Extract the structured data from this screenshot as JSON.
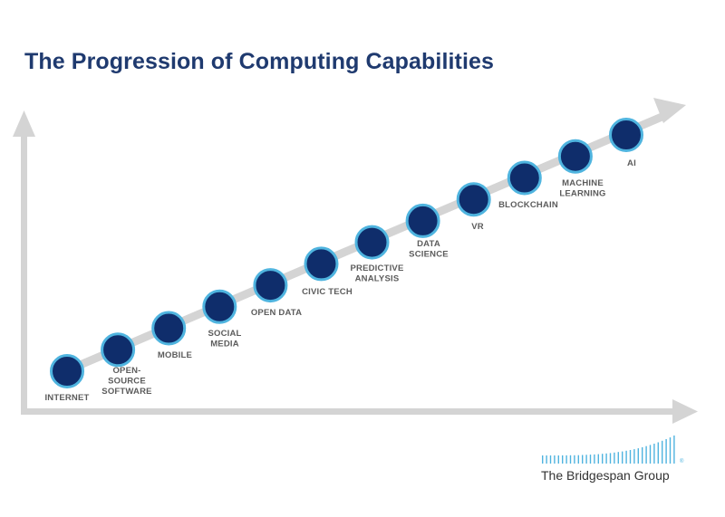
{
  "title": "The Progression of Computing Capabilities",
  "milestones": [
    {
      "label": [
        "INTERNET"
      ]
    },
    {
      "label": [
        "OPEN-",
        "SOURCE",
        "SOFTWARE"
      ]
    },
    {
      "label": [
        "MOBILE"
      ]
    },
    {
      "label": [
        "SOCIAL",
        "MEDIA"
      ]
    },
    {
      "label": [
        "OPEN DATA"
      ]
    },
    {
      "label": [
        "CIVIC TECH"
      ]
    },
    {
      "label": [
        "PREDICTIVE",
        "ANALYSIS"
      ]
    },
    {
      "label": [
        "DATA",
        "SCIENCE"
      ]
    },
    {
      "label": [
        "VR"
      ]
    },
    {
      "label": [
        "BLOCKCHAIN"
      ]
    },
    {
      "label": [
        "MACHINE",
        "LEARNING"
      ]
    },
    {
      "label": [
        "AI"
      ]
    }
  ],
  "logo": {
    "name": "The Bridgespan Group",
    "mark": "®"
  },
  "colors": {
    "title": "#1f3a6f",
    "node_fill": "#0f2d6b",
    "node_ring": "#4fb4df",
    "axis": "#d4d4d4",
    "label": "#5c5c5c",
    "logo_bars": "#4fb4df"
  }
}
